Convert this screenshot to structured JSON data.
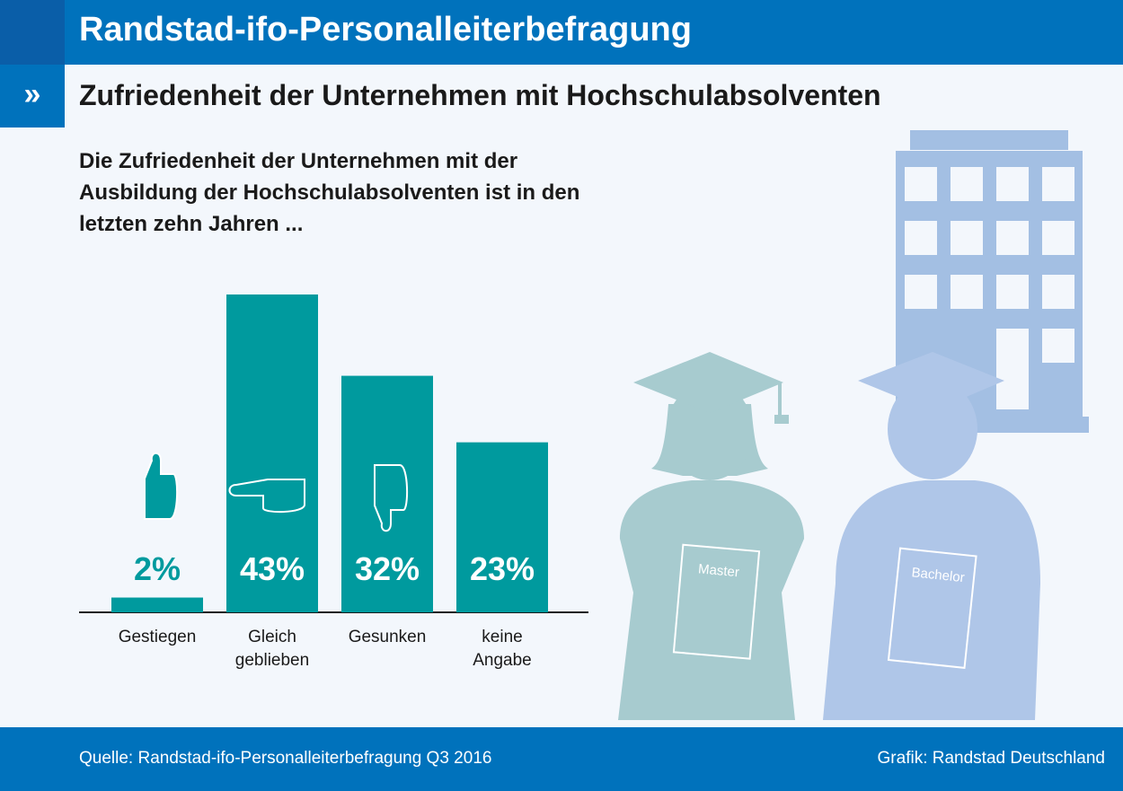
{
  "header": {
    "title": "Randstad-ifo-Personalleiterbefragung",
    "marker": "»",
    "subtitle": "Zufriedenheit der Unternehmen mit Hochschulabsolventen"
  },
  "question": "Die Zufriedenheit der Unternehmen mit der Ausbildung der Hochschulabsolventen ist in den letzten zehn Jahren ...",
  "chart_data": {
    "type": "bar",
    "title": "Die Zufriedenheit der Unternehmen mit der Ausbildung der Hochschulabsolventen ist in den letzten zehn Jahren ...",
    "categories": [
      [
        "Gestiegen"
      ],
      [
        "Gleich",
        "geblieben"
      ],
      [
        "Gesunken"
      ],
      [
        "keine",
        "Angabe"
      ]
    ],
    "values": [
      2,
      43,
      32,
      23
    ],
    "value_labels": [
      "2%",
      "43%",
      "32%",
      "23%"
    ],
    "unit": "%",
    "icons": [
      "thumb-up-icon",
      "thumb-sideways-icon",
      "thumb-down-icon",
      ""
    ],
    "ylim": [
      0,
      45
    ],
    "xlabel": "",
    "ylabel": "",
    "grid": false,
    "color": "#009a9e"
  },
  "illustration": {
    "book_left": "Master",
    "book_right": "Bachelor",
    "colors": {
      "building": "#a3bfe3",
      "person_left": "#a7cbcf",
      "person_right": "#afc6e8"
    }
  },
  "footer": {
    "source": "Quelle: Randstad-ifo-Personalleiterbefragung Q3 2016",
    "credit": "Grafik: Randstad Deutschland"
  },
  "colors": {
    "brand_blue": "#0072bc",
    "dark_blue": "#0a5ea8",
    "background": "#f3f7fc"
  }
}
